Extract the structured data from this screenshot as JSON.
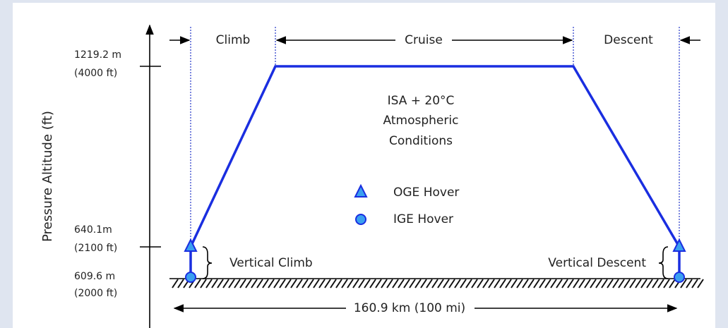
{
  "y_axis": {
    "label": "Pressure Altitude (ft)",
    "levels": [
      {
        "metric": "1219.2 m",
        "imperial": "(4000 ft)"
      },
      {
        "metric": "640.1m",
        "imperial": "(2100 ft)"
      },
      {
        "metric": "609.6 m",
        "imperial": "(2000 ft)"
      }
    ]
  },
  "phases": [
    "Climb",
    "Cruise",
    "Descent"
  ],
  "conditions": [
    "ISA + 20°C",
    "Atmospheric",
    "Conditions"
  ],
  "legend": [
    "OGE Hover",
    "IGE Hover"
  ],
  "segments": [
    "Vertical Climb",
    "Vertical Descent"
  ],
  "distance": "160.9 km (100 mi)"
}
